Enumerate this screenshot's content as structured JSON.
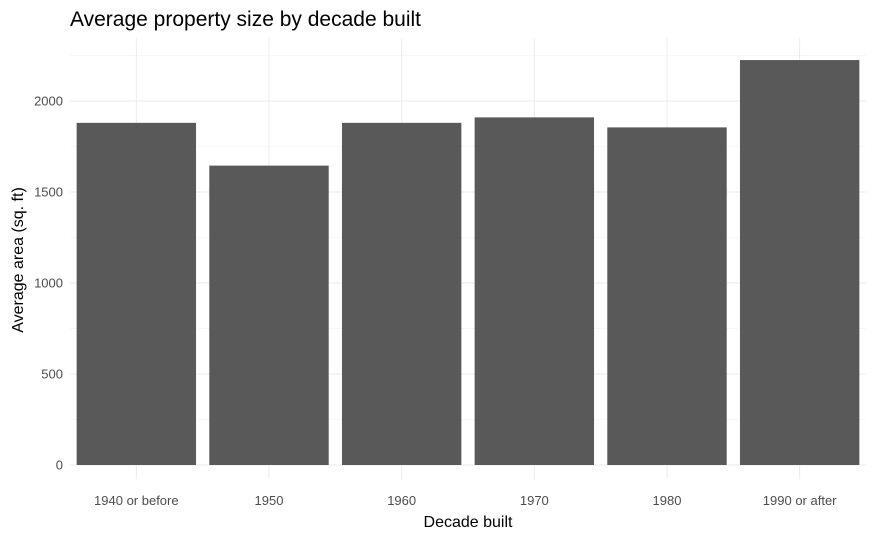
{
  "chart_data": {
    "type": "bar",
    "title": "Average property size by decade built",
    "xlabel": "Decade built",
    "ylabel": "Average area (sq. ft)",
    "categories": [
      "1940 or before",
      "1950",
      "1960",
      "1970",
      "1980",
      "1990 or after"
    ],
    "values": [
      1880,
      1645,
      1880,
      1910,
      1855,
      2225
    ],
    "ylim": [
      0,
      2300
    ],
    "yticks": [
      0,
      500,
      1000,
      1500,
      2000
    ],
    "grid": true,
    "legend": "none",
    "colors": {
      "bar": "#595959",
      "background": "#ffffff"
    }
  }
}
